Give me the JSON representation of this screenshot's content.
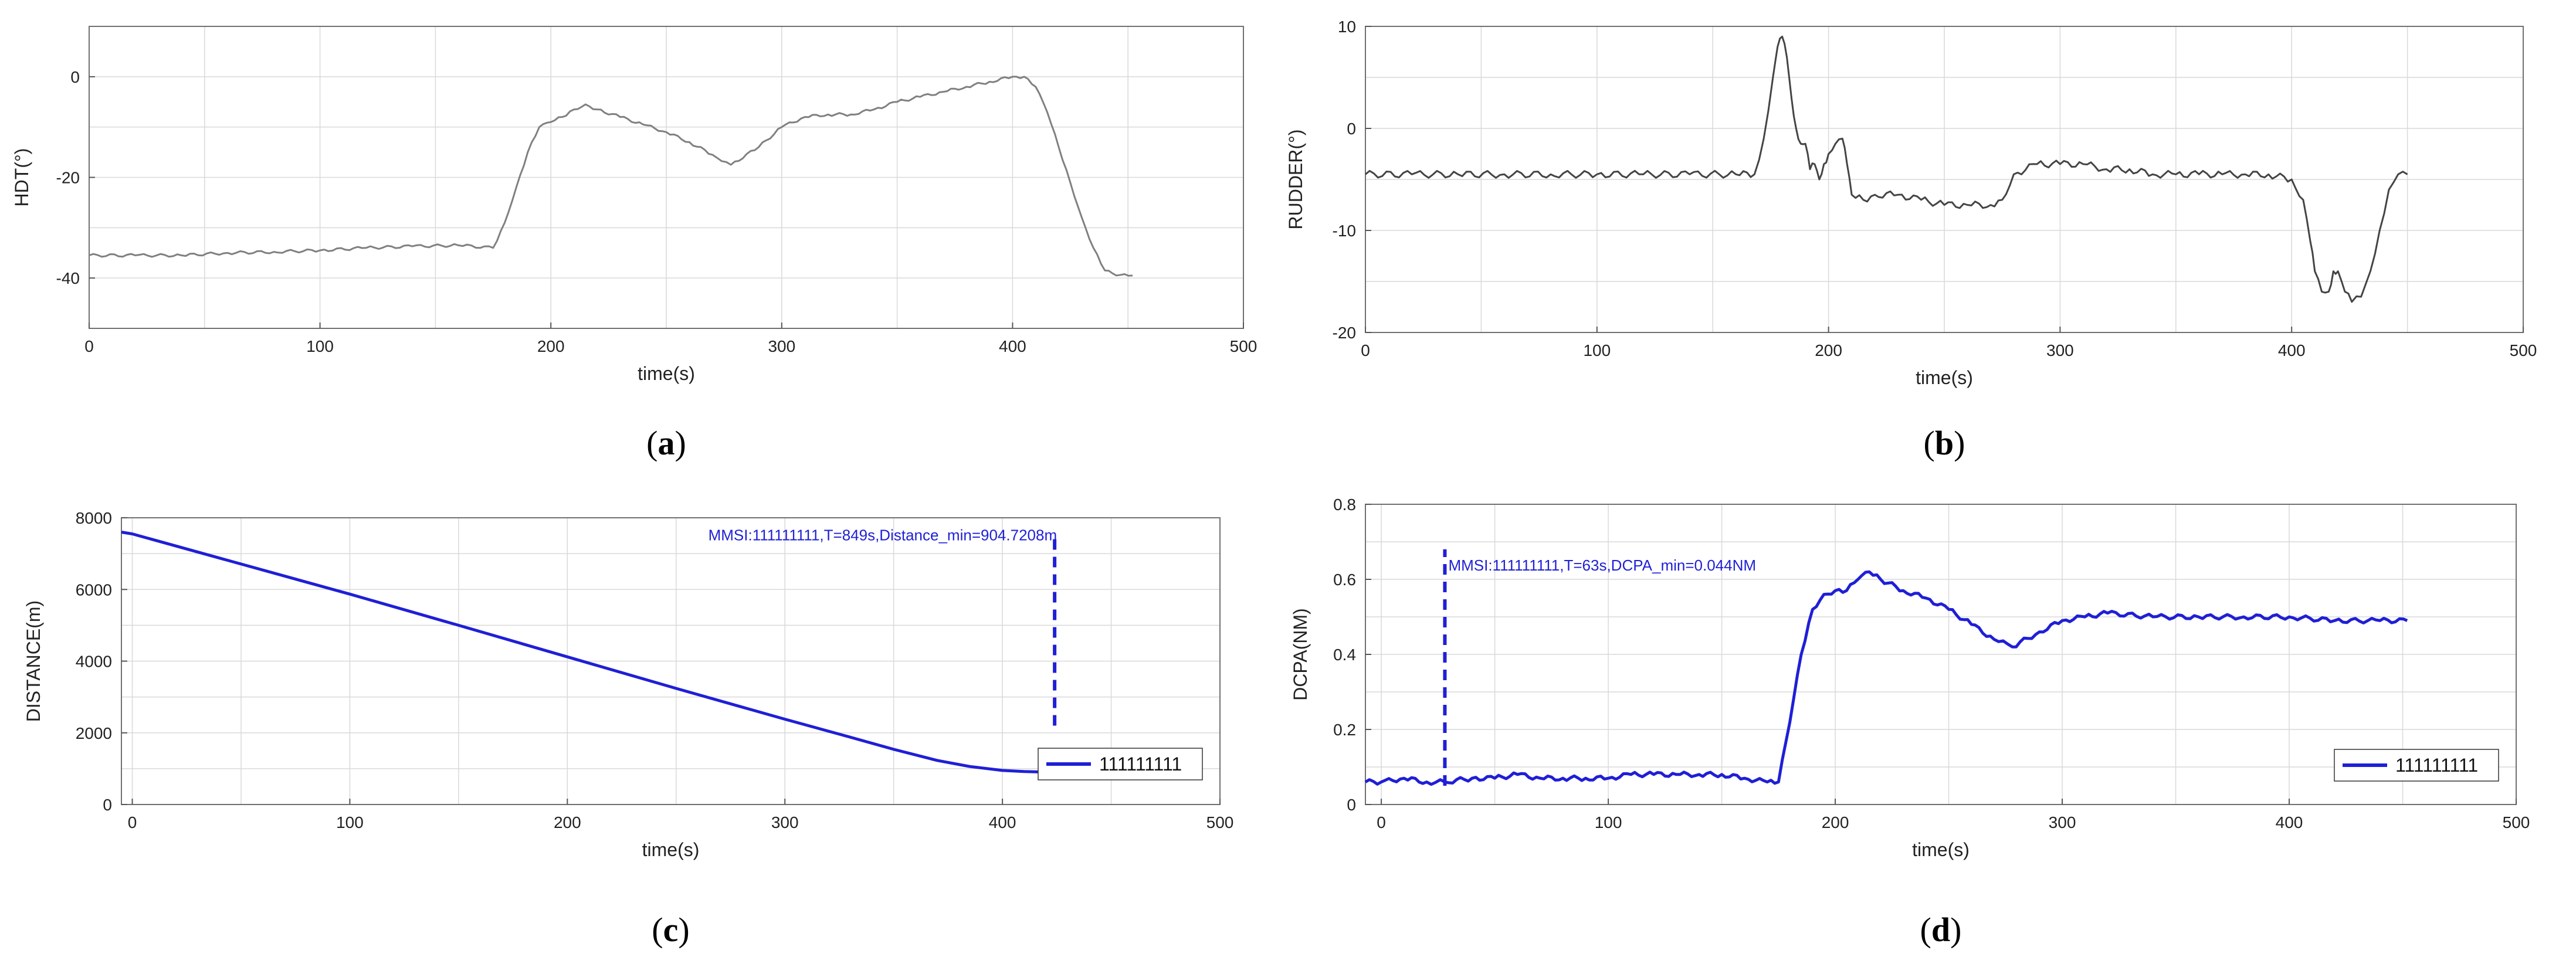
{
  "chart_data": [
    {
      "id": "a",
      "type": "line",
      "panel_label": "a",
      "xlabel": "time(s)",
      "ylabel": "HDT(°)",
      "xlim": [
        0,
        500
      ],
      "ylim": [
        -50,
        10
      ],
      "xticks": [
        "0",
        "100",
        "200",
        "300",
        "400",
        "500"
      ],
      "yticks": [
        "0",
        "-20",
        "-40"
      ],
      "grid": true,
      "line_color": "#808080",
      "series": [
        {
          "x": [
            0,
            20,
            40,
            60,
            80,
            100,
            120,
            140,
            160,
            175,
            180,
            185,
            190,
            195,
            200,
            205,
            210,
            215,
            220,
            230,
            240,
            250,
            260,
            270,
            278,
            290,
            300,
            310,
            320,
            330,
            340,
            350,
            360,
            370,
            380,
            390,
            400,
            405,
            410,
            415,
            420,
            425,
            430,
            435,
            440,
            445,
            452
          ],
          "y": [
            -35.5,
            -35.5,
            -35.5,
            -35,
            -34.8,
            -34.5,
            -34,
            -33.7,
            -33.5,
            -34,
            -29,
            -22,
            -15,
            -10,
            -9,
            -8,
            -6.5,
            -5.5,
            -6.5,
            -8,
            -9.5,
            -11,
            -13,
            -15.5,
            -17.5,
            -14,
            -10,
            -8,
            -7.5,
            -7.5,
            -6.5,
            -5,
            -4,
            -3,
            -2,
            -1,
            0,
            0,
            -2,
            -7,
            -14,
            -21,
            -28,
            -34,
            -38.5,
            -39.5,
            -39.5
          ]
        }
      ]
    },
    {
      "id": "b",
      "type": "line",
      "panel_label": "b",
      "xlabel": "time(s)",
      "ylabel": "RUDDER(°)",
      "xlim": [
        0,
        500
      ],
      "ylim": [
        -20,
        10
      ],
      "xticks": [
        "0",
        "100",
        "200",
        "300",
        "400",
        "500"
      ],
      "yticks": [
        "10",
        "0",
        "-10",
        "-20"
      ],
      "grid": true,
      "line_color": "#444444",
      "series": [
        {
          "x": [
            0,
            20,
            40,
            60,
            80,
            100,
            120,
            140,
            160,
            168,
            172,
            176,
            178,
            180,
            182,
            184,
            186,
            188,
            190,
            192,
            194,
            196,
            198,
            200,
            203,
            206,
            208,
            210,
            215,
            220,
            230,
            240,
            250,
            260,
            270,
            275,
            280,
            290,
            300,
            310,
            320,
            330,
            340,
            350,
            360,
            370,
            380,
            390,
            400,
            405,
            408,
            410,
            413,
            416,
            418,
            420,
            423,
            426,
            430,
            434,
            438,
            442,
            446,
            450
          ],
          "y": [
            -4.5,
            -4.5,
            -4.5,
            -4.5,
            -4.5,
            -4.5,
            -4.5,
            -4.5,
            -4.5,
            -4.5,
            -1,
            5,
            8,
            9,
            7,
            3,
            0,
            -1.5,
            -1.5,
            -4,
            -3.5,
            -5,
            -3.5,
            -2.5,
            -1.5,
            -1,
            -3.5,
            -6.5,
            -7,
            -6.5,
            -6.5,
            -7,
            -7.5,
            -7.5,
            -7.5,
            -7,
            -4.5,
            -3.5,
            -3.5,
            -3.5,
            -4,
            -4,
            -4.5,
            -4.5,
            -4.5,
            -4.5,
            -4.5,
            -4.5,
            -5,
            -7,
            -11,
            -14,
            -16,
            -16,
            -14,
            -14,
            -16,
            -17,
            -16.5,
            -14,
            -10,
            -6,
            -4.5,
            -4.5
          ]
        }
      ]
    },
    {
      "id": "c",
      "type": "line",
      "panel_label": "c",
      "xlabel": "time(s)",
      "ylabel": "DISTANCE(m)",
      "xlim": [
        -5,
        500
      ],
      "ylim": [
        0,
        8000
      ],
      "xticks": [
        "0",
        "100",
        "200",
        "300",
        "400",
        "500"
      ],
      "yticks": [
        "8000",
        "6000",
        "4000",
        "2000",
        "0"
      ],
      "grid": true,
      "line_color": "#1f1fd6",
      "annotation": "MMSI:111111111,T=849s,Distance_min=904.7208m",
      "marker_x": 424,
      "marker_y": [
        2200,
        7500
      ],
      "legend_label": "111111111",
      "legend_position": "bottom-right",
      "series": [
        {
          "name": "111111111",
          "x": [
            -5,
            0,
            50,
            100,
            150,
            200,
            250,
            300,
            330,
            350,
            370,
            385,
            400,
            410,
            420,
            424
          ],
          "y": [
            7600,
            7550,
            6710,
            5870,
            5000,
            4120,
            3240,
            2380,
            1880,
            1540,
            1230,
            1060,
            950,
            920,
            905,
            905
          ]
        }
      ]
    },
    {
      "id": "d",
      "type": "line",
      "panel_label": "d",
      "xlabel": "time(s)",
      "ylabel": "DCPA(NM)",
      "xlim": [
        -7,
        500
      ],
      "ylim": [
        0,
        0.8
      ],
      "xticks": [
        "0",
        "100",
        "200",
        "300",
        "400",
        "500"
      ],
      "yticks": [
        "0.8",
        "0.6",
        "0.4",
        "0.2",
        "0"
      ],
      "grid": true,
      "line_color": "#1f1fd6",
      "annotation": "MMSI:111111111,T=63s,DCPA_min=0.044NM",
      "marker_x": 28,
      "marker_y": [
        0.05,
        0.68
      ],
      "legend_label": "111111111",
      "legend_position": "bottom-right",
      "series": [
        {
          "name": "111111111",
          "x": [
            -7,
            0,
            10,
            20,
            28,
            40,
            50,
            60,
            70,
            80,
            90,
            100,
            110,
            120,
            130,
            140,
            150,
            160,
            170,
            175,
            180,
            185,
            190,
            195,
            200,
            205,
            210,
            215,
            220,
            230,
            240,
            250,
            260,
            270,
            278,
            290,
            300,
            310,
            320,
            340,
            360,
            380,
            400,
            420,
            440,
            452
          ],
          "y": [
            0.06,
            0.06,
            0.07,
            0.06,
            0.06,
            0.07,
            0.07,
            0.08,
            0.07,
            0.07,
            0.07,
            0.07,
            0.08,
            0.08,
            0.08,
            0.08,
            0.08,
            0.07,
            0.06,
            0.06,
            0.22,
            0.4,
            0.52,
            0.56,
            0.57,
            0.57,
            0.6,
            0.62,
            0.6,
            0.57,
            0.55,
            0.52,
            0.48,
            0.44,
            0.42,
            0.46,
            0.49,
            0.5,
            0.51,
            0.5,
            0.5,
            0.5,
            0.5,
            0.49,
            0.49,
            0.49
          ]
        }
      ]
    }
  ]
}
